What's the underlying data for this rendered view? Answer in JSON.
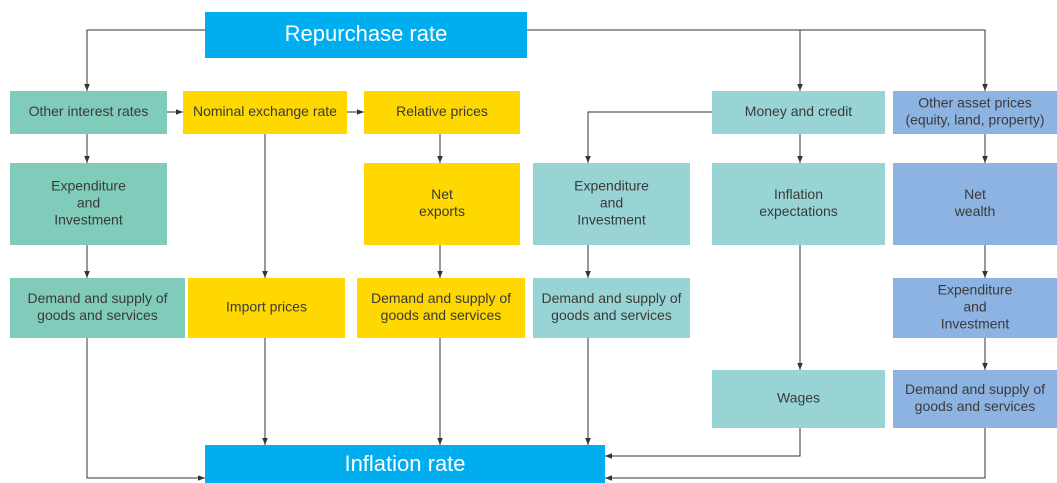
{
  "nodes": [
    {
      "lines": [
        "Repurchase rate"
      ]
    },
    {
      "lines": [
        "Inflation rate"
      ]
    },
    {
      "lines": [
        "Other interest rates"
      ]
    },
    {
      "lines": [
        "Expenditure",
        "and",
        "Investment"
      ]
    },
    {
      "lines": [
        "Demand and supply of",
        "goods and services"
      ]
    },
    {
      "lines": [
        "Nominal exchange rate"
      ]
    },
    {
      "lines": [
        "Import prices"
      ]
    },
    {
      "lines": [
        "Relative prices"
      ]
    },
    {
      "lines": [
        "Net",
        "exports"
      ]
    },
    {
      "lines": [
        "Demand and supply of",
        "goods and services"
      ]
    },
    {
      "lines": [
        "Expenditure",
        "and",
        "Investment"
      ]
    },
    {
      "lines": [
        "Demand and supply of",
        "goods and services"
      ]
    },
    {
      "lines": [
        "Money and credit"
      ]
    },
    {
      "lines": [
        "Inflation",
        "expectations"
      ]
    },
    {
      "lines": [
        "Wages"
      ]
    },
    {
      "lines": [
        "Other asset prices",
        "(equity, land, property)"
      ]
    },
    {
      "lines": [
        "Net",
        "wealth"
      ]
    },
    {
      "lines": [
        "Expenditure",
        "and",
        "Investment"
      ]
    },
    {
      "lines": [
        "Demand and supply of",
        "goods and services"
      ]
    }
  ]
}
